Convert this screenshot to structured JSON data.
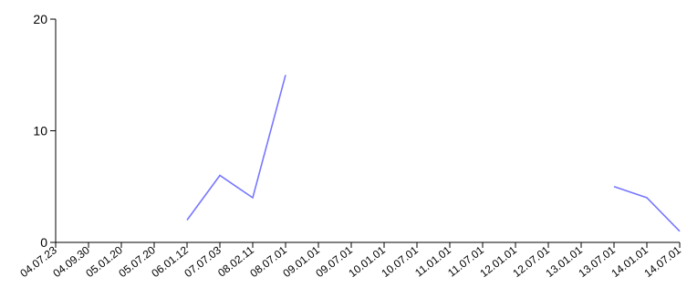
{
  "chart_data": {
    "type": "line",
    "title": "",
    "xlabel": "",
    "ylabel": "",
    "ylim": [
      0,
      20
    ],
    "y_ticks": [
      "0",
      "10",
      "20"
    ],
    "grid": false,
    "categories": [
      "04.07.23",
      "04.09.30",
      "05.01.20",
      "05.07.20",
      "06.01.12",
      "07.07.03",
      "08.02.11",
      "08.07.01",
      "09.01.01",
      "09.07.01",
      "10.01.01",
      "10.07.01",
      "11.01.01",
      "11.07.01",
      "12.01.01",
      "12.07.01",
      "13.01.01",
      "13.07.01",
      "14.01.01",
      "14.07.01"
    ],
    "series": [
      {
        "color": "#7777ff",
        "values": [
          null,
          null,
          null,
          null,
          2,
          6,
          4,
          15,
          null,
          null,
          null,
          null,
          null,
          null,
          null,
          null,
          null,
          5,
          4,
          1
        ]
      }
    ]
  }
}
